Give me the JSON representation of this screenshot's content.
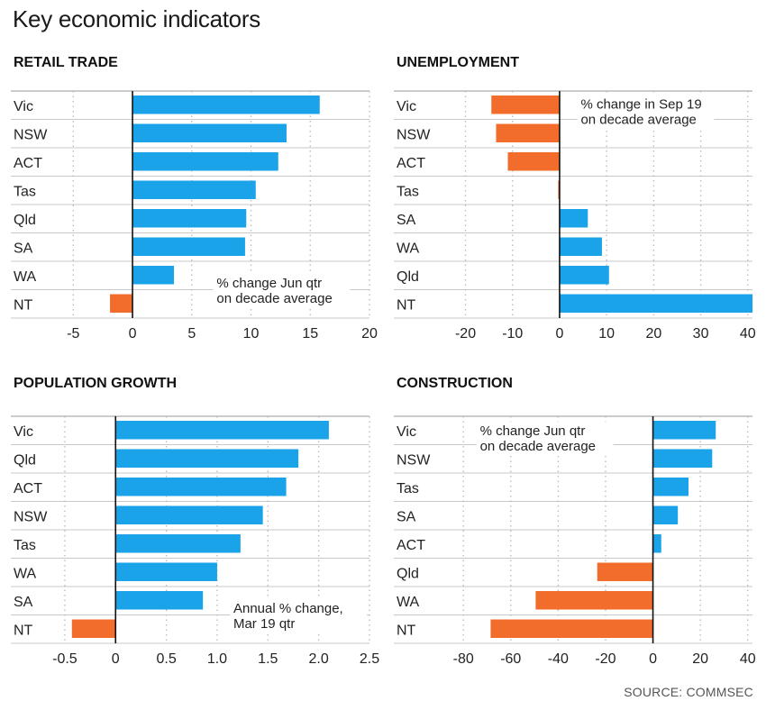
{
  "title": "Key economic indicators",
  "source": "SOURCE: COMMSEC",
  "colors": {
    "positive": "#1aa3e8",
    "negative": "#f26c2b",
    "grid": "#bdbdbd",
    "rowline": "#c8c8c8",
    "axis": "#111111"
  },
  "chart_data": [
    {
      "type": "bar",
      "orientation": "horizontal",
      "title": "RETAIL TRADE",
      "annotation": [
        "% change Jun qtr",
        "on decade average"
      ],
      "categories": [
        "Vic",
        "NSW",
        "ACT",
        "Tas",
        "Qld",
        "SA",
        "WA",
        "NT"
      ],
      "values": [
        15.8,
        13.0,
        12.3,
        10.4,
        9.6,
        9.5,
        3.5,
        -1.9
      ],
      "xlim": [
        -7,
        20
      ],
      "xticks": [
        -5,
        0,
        5,
        10,
        15,
        20
      ],
      "xtick_labels": [
        "-5",
        "0",
        "5",
        "10",
        "15",
        "20"
      ],
      "grid": "vertical dotted"
    },
    {
      "type": "bar",
      "orientation": "horizontal",
      "title": "UNEMPLOYMENT",
      "annotation": [
        "% change in Sep 19",
        "on decade average"
      ],
      "categories": [
        "Vic",
        "NSW",
        "ACT",
        "Tas",
        "SA",
        "WA",
        "Qld",
        "NT"
      ],
      "values": [
        -14.5,
        -13.5,
        -11.0,
        -0.3,
        6.0,
        9.0,
        10.5,
        41.0
      ],
      "xlim": [
        -27,
        41
      ],
      "xticks": [
        -20,
        -10,
        0,
        10,
        20,
        30,
        40
      ],
      "xtick_labels": [
        "-20",
        "-10",
        "0",
        "10",
        "20",
        "30",
        "40"
      ],
      "grid": "vertical dotted"
    },
    {
      "type": "bar",
      "orientation": "horizontal",
      "title": "POPULATION GROWTH",
      "annotation": [
        "Annual % change,",
        "Mar 19 qtr"
      ],
      "categories": [
        "Vic",
        "Qld",
        "ACT",
        "NSW",
        "Tas",
        "WA",
        "SA",
        "NT"
      ],
      "values": [
        2.1,
        1.8,
        1.68,
        1.45,
        1.23,
        1.0,
        0.86,
        -0.43
      ],
      "xlim": [
        -0.65,
        2.5
      ],
      "xticks": [
        -0.5,
        0,
        0.5,
        1.0,
        1.5,
        2.0,
        2.5
      ],
      "xtick_labels": [
        "-0.5",
        "0",
        "0.5",
        "1.0",
        "1.5",
        "2.0",
        "2.5"
      ],
      "grid": "vertical dotted"
    },
    {
      "type": "bar",
      "orientation": "horizontal",
      "title": "CONSTRUCTION",
      "annotation": [
        "% change Jun qtr",
        "on decade average"
      ],
      "categories": [
        "Vic",
        "NSW",
        "Tas",
        "SA",
        "ACT",
        "Qld",
        "WA",
        "NT"
      ],
      "values": [
        26.5,
        25.0,
        15.0,
        10.5,
        3.5,
        -23.5,
        -49.5,
        -68.5
      ],
      "xlim": [
        -93,
        42
      ],
      "xticks": [
        -80,
        -60,
        -40,
        -20,
        0,
        20,
        40
      ],
      "xtick_labels": [
        "-80",
        "-60",
        "-40",
        "-20",
        "0",
        "20",
        "40"
      ],
      "grid": "vertical dotted"
    }
  ]
}
